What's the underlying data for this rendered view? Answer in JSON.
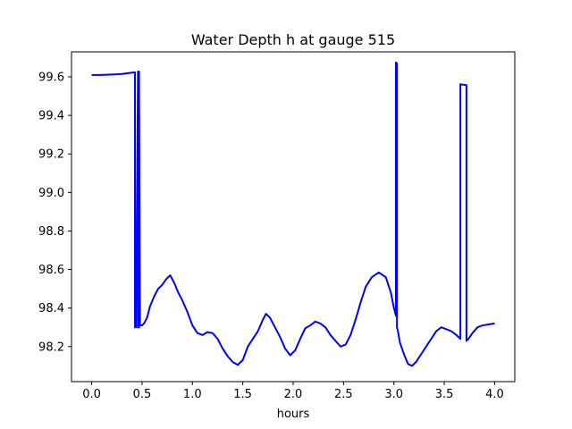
{
  "chart_data": {
    "type": "line",
    "title": "Water Depth h at gauge 515",
    "xlabel": "hours",
    "ylabel": "",
    "xlim": [
      -0.2,
      4.2
    ],
    "ylim": [
      98.018,
      99.73
    ],
    "x_ticks": [
      "0.0",
      "0.5",
      "1.0",
      "1.5",
      "2.0",
      "2.5",
      "3.0",
      "3.5",
      "4.0"
    ],
    "y_ticks": [
      "98.2",
      "98.4",
      "98.6",
      "98.8",
      "99.0",
      "99.2",
      "99.4",
      "99.6"
    ],
    "grid": false,
    "series": [
      {
        "color": "#0000ff",
        "x": [
          0.0,
          0.1,
          0.2,
          0.3,
          0.43,
          0.43,
          0.44,
          0.46,
          0.46,
          0.47,
          0.47,
          0.48,
          0.5,
          0.52,
          0.55,
          0.58,
          0.62,
          0.66,
          0.7,
          0.74,
          0.78,
          0.82,
          0.86,
          0.9,
          0.95,
          1.0,
          1.05,
          1.1,
          1.15,
          1.2,
          1.25,
          1.3,
          1.35,
          1.4,
          1.45,
          1.5,
          1.55,
          1.6,
          1.65,
          1.7,
          1.73,
          1.77,
          1.82,
          1.87,
          1.92,
          1.97,
          2.02,
          2.07,
          2.12,
          2.17,
          2.22,
          2.27,
          2.32,
          2.37,
          2.42,
          2.47,
          2.52,
          2.57,
          2.62,
          2.67,
          2.72,
          2.78,
          2.85,
          2.92,
          2.97,
          3.0,
          3.02,
          3.02,
          3.03,
          3.03,
          3.04,
          3.06,
          3.1,
          3.14,
          3.18,
          3.22,
          3.27,
          3.32,
          3.37,
          3.42,
          3.47,
          3.52,
          3.57,
          3.62,
          3.66,
          3.66,
          3.68,
          3.72,
          3.72,
          3.74,
          3.78,
          3.83,
          3.88,
          3.94,
          4.0
        ],
        "y": [
          99.61,
          99.61,
          99.612,
          99.615,
          99.624,
          98.3,
          98.3,
          99.628,
          98.3,
          98.3,
          99.628,
          98.31,
          98.31,
          98.32,
          98.35,
          98.41,
          98.46,
          98.5,
          98.52,
          98.55,
          98.57,
          98.53,
          98.48,
          98.44,
          98.38,
          98.31,
          98.27,
          98.26,
          98.275,
          98.27,
          98.24,
          98.19,
          98.15,
          98.12,
          98.105,
          98.13,
          98.2,
          98.24,
          98.28,
          98.34,
          98.37,
          98.35,
          98.3,
          98.25,
          98.19,
          98.155,
          98.18,
          98.24,
          98.295,
          98.31,
          98.33,
          98.32,
          98.3,
          98.26,
          98.23,
          98.2,
          98.21,
          98.26,
          98.34,
          98.43,
          98.51,
          98.56,
          98.585,
          98.56,
          98.48,
          98.4,
          98.36,
          99.675,
          99.67,
          98.3,
          98.28,
          98.22,
          98.16,
          98.11,
          98.1,
          98.12,
          98.16,
          98.2,
          98.24,
          98.28,
          98.3,
          98.29,
          98.28,
          98.26,
          98.24,
          99.562,
          99.56,
          99.557,
          98.23,
          98.24,
          98.27,
          98.3,
          98.31,
          98.315,
          98.32
        ]
      }
    ]
  }
}
